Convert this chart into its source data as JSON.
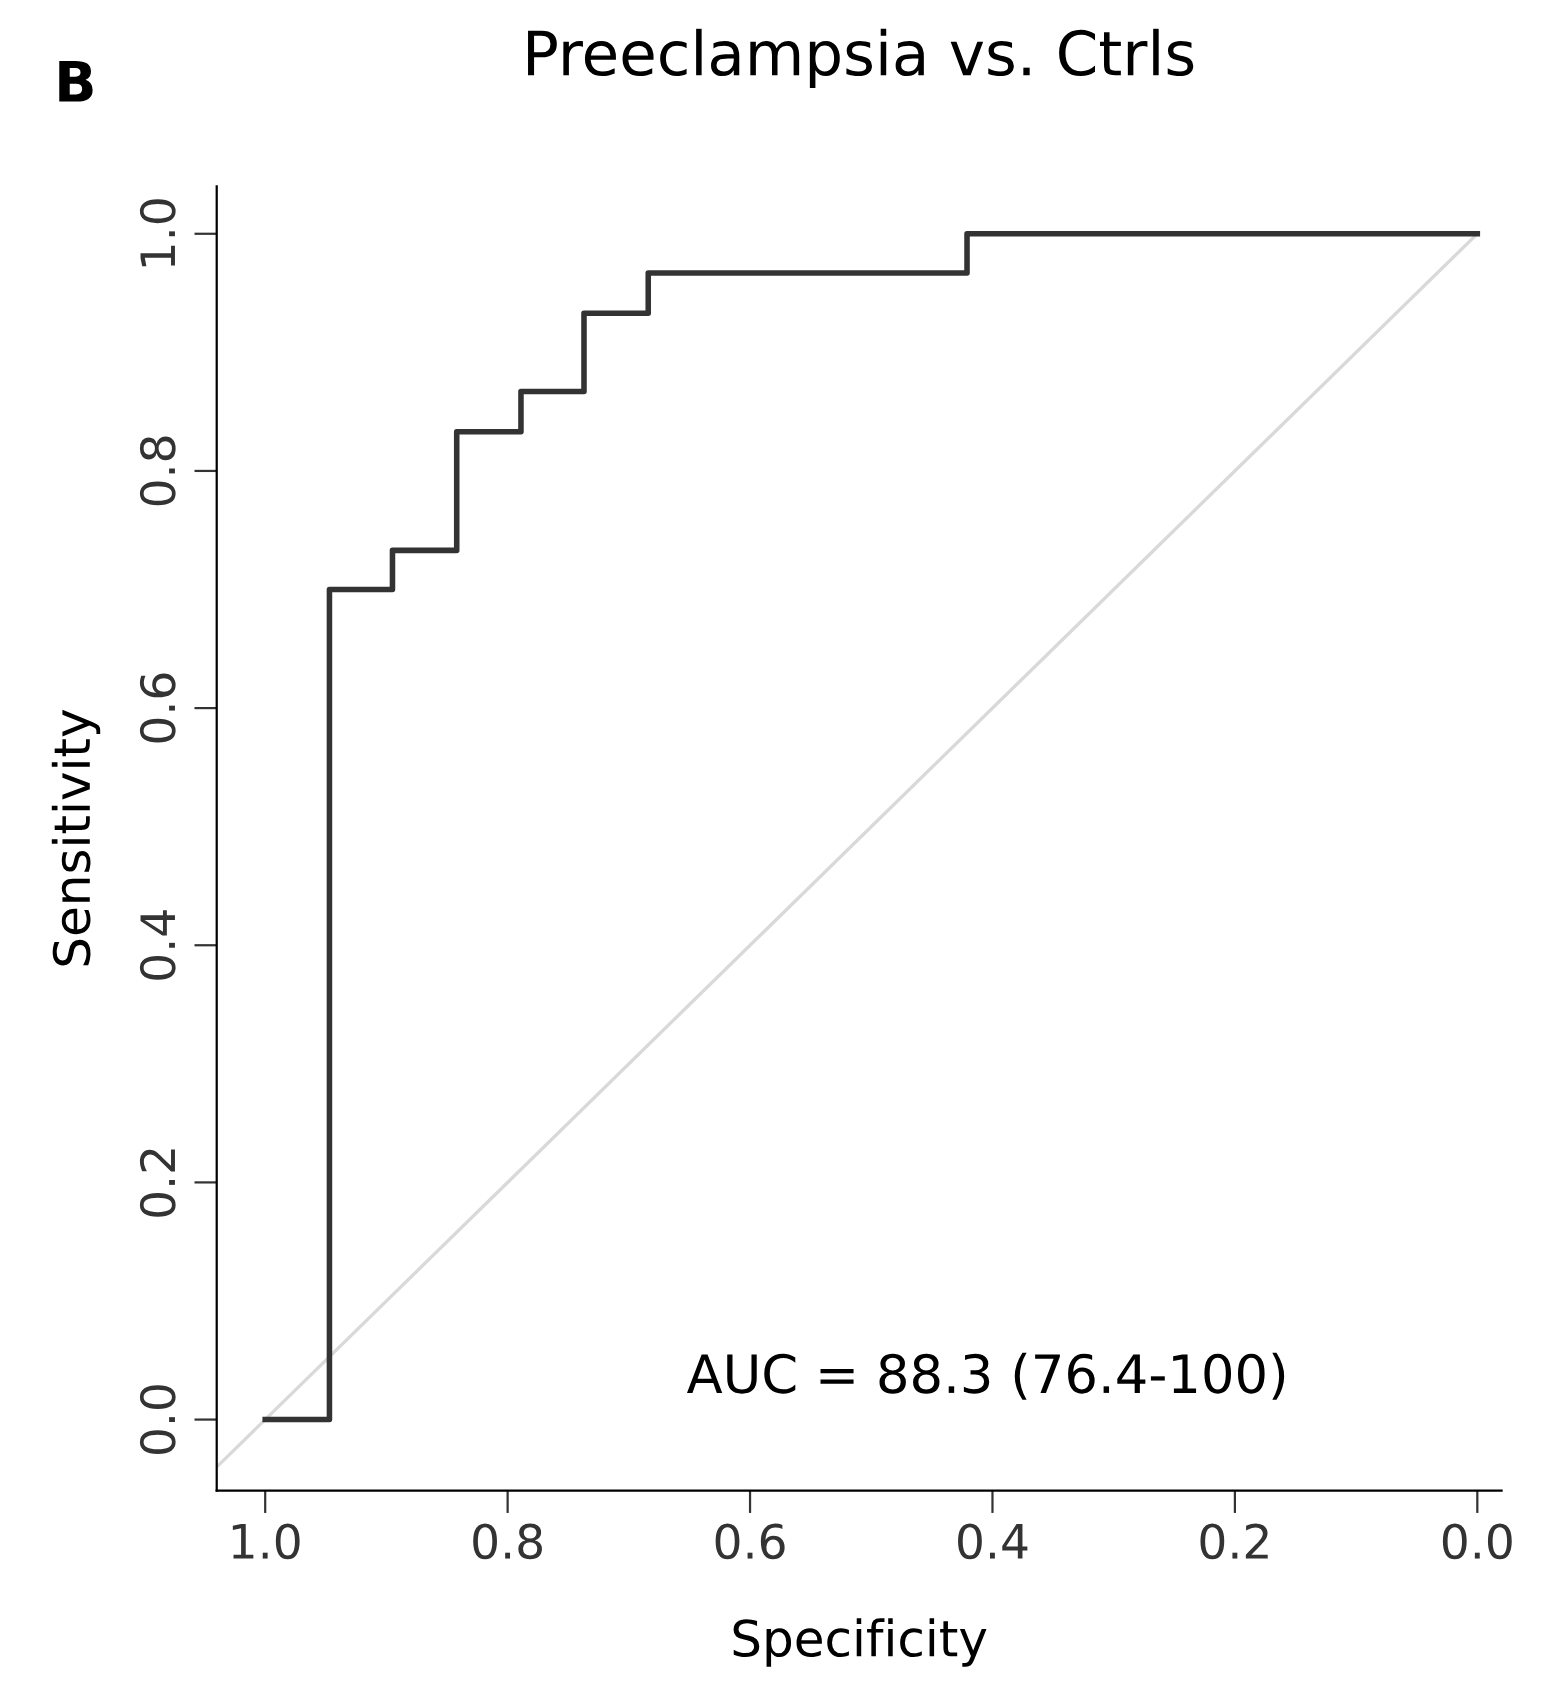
{
  "chart_data": {
    "type": "step",
    "title": "Preeclampsia vs. Ctrls",
    "xlabel": "Specificity",
    "ylabel": "Sensitivity",
    "annotations": [
      "B",
      "AUC = 88.3 (76.4-100)"
    ],
    "series": [
      {
        "type": "line",
        "color": "#d9d9d9",
        "x": [
          1.04,
          0.0
        ],
        "values": [
          -0.04,
          1.0
        ]
      },
      {
        "color": "#333333",
        "x": [
          1.0,
          0.947,
          0.895,
          0.842,
          0.789,
          0.737,
          0.684,
          0.421,
          0.0
        ],
        "values": [
          0.0,
          0.7,
          0.733,
          0.833,
          0.867,
          0.933,
          0.967,
          1.0,
          1.0
        ]
      }
    ],
    "xlim": [
      1.04,
      -0.02
    ],
    "ylim": [
      -0.06,
      1.04
    ],
    "xticks": [
      {
        "value": 1.0,
        "label": "1.0"
      },
      0.8,
      0.6,
      0.4,
      0.2,
      {
        "value": 0.0,
        "label": "0.0"
      }
    ],
    "yticks": [
      {
        "value": 0.0,
        "label": "0.0"
      },
      0.2,
      0.4,
      0.6,
      0.8,
      {
        "value": 1.0,
        "label": "1.0"
      }
    ],
    "grid": false,
    "legend": false
  }
}
